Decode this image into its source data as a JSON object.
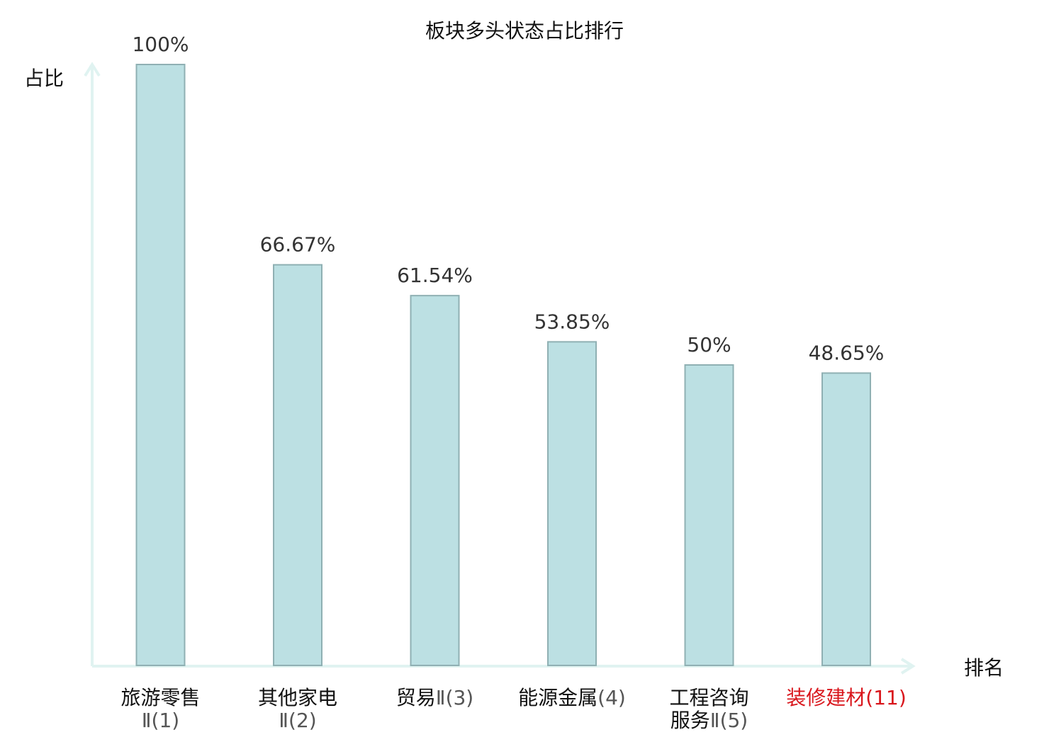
{
  "chart_data": {
    "type": "bar",
    "title": "板块多头状态占比排行",
    "ylabel": "占比",
    "xlabel": "排名",
    "ylim": [
      0,
      100
    ],
    "grid": false,
    "categories": [
      {
        "lines": [
          "旅游零售",
          "Ⅱ(1)"
        ],
        "highlight": false
      },
      {
        "lines": [
          "其他家电",
          "Ⅱ(2)"
        ],
        "highlight": false
      },
      {
        "lines": [
          "贸易Ⅱ(3)"
        ],
        "highlight": false
      },
      {
        "lines": [
          "能源金属(4)"
        ],
        "highlight": false
      },
      {
        "lines": [
          "工程咨询",
          "服务Ⅱ(5)"
        ],
        "highlight": false
      },
      {
        "lines": [
          "装修建材(11)"
        ],
        "highlight": true
      }
    ],
    "values": [
      100,
      66.67,
      61.54,
      53.85,
      50,
      48.65
    ],
    "value_labels": [
      "100%",
      "66.67%",
      "61.54%",
      "53.85%",
      "50%",
      "48.65%"
    ],
    "colors": {
      "bar_fill": "#bce0e3",
      "bar_stroke": "#8fb0b3",
      "axis": "#e0f3f1",
      "highlight_text": "#d9161c"
    }
  }
}
